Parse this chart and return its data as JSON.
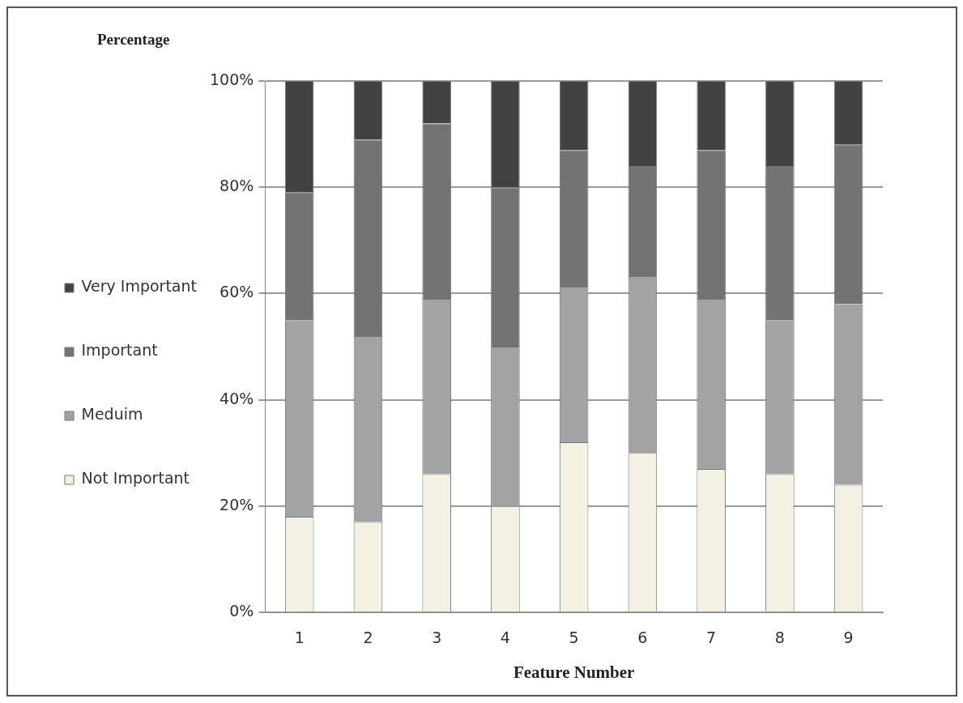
{
  "chart_data": {
    "type": "bar",
    "stacked": true,
    "xlabel": "Feature Number",
    "ylabel": "Percentage",
    "categories": [
      "1",
      "2",
      "3",
      "4",
      "5",
      "6",
      "7",
      "8",
      "9"
    ],
    "series": [
      {
        "name": "Not Important",
        "color": "#f3f1e2",
        "values": [
          18,
          17,
          26,
          20,
          32,
          30,
          27,
          26,
          24
        ]
      },
      {
        "name": "Meduim",
        "color": "#a3a3a3",
        "values": [
          37,
          35,
          33,
          30,
          29,
          33,
          32,
          29,
          34
        ]
      },
      {
        "name": "Important",
        "color": "#737373",
        "values": [
          24,
          37,
          33,
          30,
          26,
          21,
          28,
          29,
          30
        ]
      },
      {
        "name": "Very Important",
        "color": "#424242",
        "values": [
          21,
          11,
          8,
          20,
          13,
          16,
          13,
          16,
          12
        ]
      }
    ],
    "ylim": [
      0,
      100
    ],
    "yticks": [
      {
        "value": 0,
        "label": "0%"
      },
      {
        "value": 20,
        "label": "20%"
      },
      {
        "value": 40,
        "label": "40%"
      },
      {
        "value": 60,
        "label": "60%"
      },
      {
        "value": 80,
        "label": "80%"
      },
      {
        "value": 100,
        "label": "100%"
      }
    ],
    "grid": "y",
    "legend": "left"
  }
}
